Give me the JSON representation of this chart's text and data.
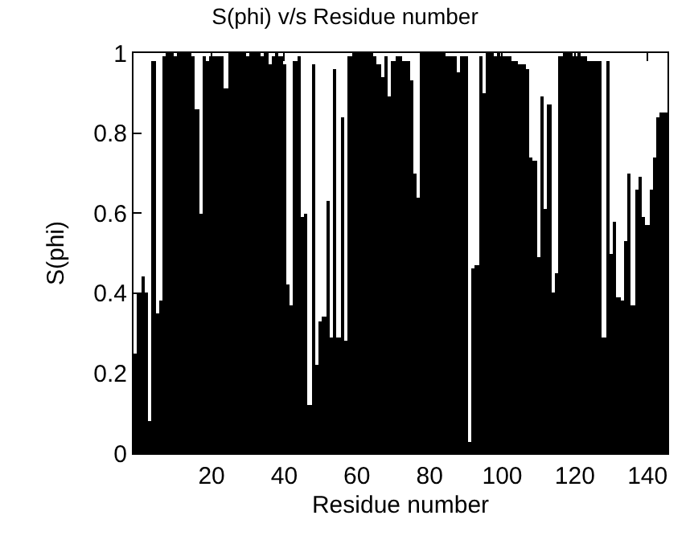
{
  "chart_data": {
    "type": "bar",
    "title": "S(phi) v/s Residue number",
    "xlabel": "Residue number",
    "ylabel": "S(phi)",
    "x": [
      -1,
      0,
      1,
      2,
      3,
      4,
      5,
      6,
      7,
      8,
      9,
      10,
      11,
      12,
      13,
      14,
      15,
      16,
      17,
      18,
      19,
      20,
      21,
      22,
      23,
      24,
      25,
      26,
      27,
      28,
      29,
      30,
      31,
      32,
      33,
      34,
      35,
      36,
      37,
      38,
      39,
      40,
      41,
      42,
      43,
      44,
      45,
      46,
      47,
      48,
      49,
      50,
      51,
      52,
      53,
      54,
      55,
      56,
      57,
      58,
      59,
      60,
      61,
      62,
      63,
      64,
      65,
      66,
      67,
      68,
      69,
      70,
      71,
      72,
      73,
      74,
      75,
      76,
      77,
      78,
      79,
      80,
      81,
      82,
      83,
      84,
      85,
      86,
      87,
      88,
      89,
      90,
      91,
      92,
      93,
      94,
      95,
      96,
      97,
      98,
      99,
      100,
      101,
      102,
      103,
      104,
      105,
      106,
      107,
      108,
      109,
      110,
      111,
      112,
      113,
      114,
      115,
      116,
      117,
      118,
      119,
      120,
      121,
      122,
      123,
      124,
      125,
      126,
      127,
      128,
      129,
      130,
      131,
      132,
      133,
      134,
      135,
      136,
      137,
      138,
      139,
      140,
      141,
      142,
      143,
      144,
      145
    ],
    "values": [
      0.25,
      0.4,
      0.44,
      0.4,
      0.08,
      0.98,
      0.35,
      0.38,
      0.99,
      1,
      1,
      0.99,
      1,
      1,
      1,
      1,
      0.99,
      0.86,
      0.6,
      0.99,
      0.98,
      0.99,
      0.99,
      0.99,
      0.99,
      0.91,
      1,
      1,
      1,
      1,
      1,
      0.99,
      1,
      1,
      1,
      0.99,
      1,
      0.97,
      0.99,
      1,
      0.99,
      0.97,
      0.42,
      0.37,
      0.98,
      0.99,
      0.59,
      0.6,
      0.12,
      0.97,
      0.22,
      0.33,
      0.34,
      0.63,
      0.29,
      0.96,
      0.29,
      0.84,
      0.28,
      0.99,
      1,
      1,
      1,
      1,
      1,
      1,
      0.99,
      0.97,
      0.94,
      0.99,
      0.89,
      0.98,
      0.99,
      0.99,
      0.98,
      0.98,
      0.93,
      0.7,
      0.64,
      1,
      1,
      1,
      1,
      1,
      1,
      1,
      0.99,
      0.99,
      0.99,
      0.95,
      0.99,
      0.99,
      0.03,
      0.46,
      0.47,
      0.99,
      0.9,
      1,
      1,
      0.99,
      1,
      0.99,
      0.99,
      0.99,
      0.98,
      0.98,
      0.97,
      0.97,
      0.96,
      0.74,
      0.73,
      0.49,
      0.89,
      0.61,
      0.87,
      0.4,
      0.45,
      0.99,
      1,
      1,
      1,
      0.99,
      1,
      0.99,
      0.99,
      0.98,
      0.98,
      0.98,
      0.98,
      0.29,
      0.98,
      0.5,
      0.58,
      0.39,
      0.38,
      0.53,
      0.7,
      0.37,
      0.66,
      0.69,
      0.59,
      0.57,
      0.66,
      0.74,
      0.84,
      0.85,
      0.85
    ],
    "color": "#000000",
    "xlim": [
      -1.5,
      145.5
    ],
    "xticks": [
      20,
      40,
      60,
      80,
      100,
      120,
      140
    ],
    "ylim": [
      0,
      1
    ],
    "yticks": [
      0,
      0.2,
      0.4,
      0.6,
      0.8,
      1
    ]
  }
}
